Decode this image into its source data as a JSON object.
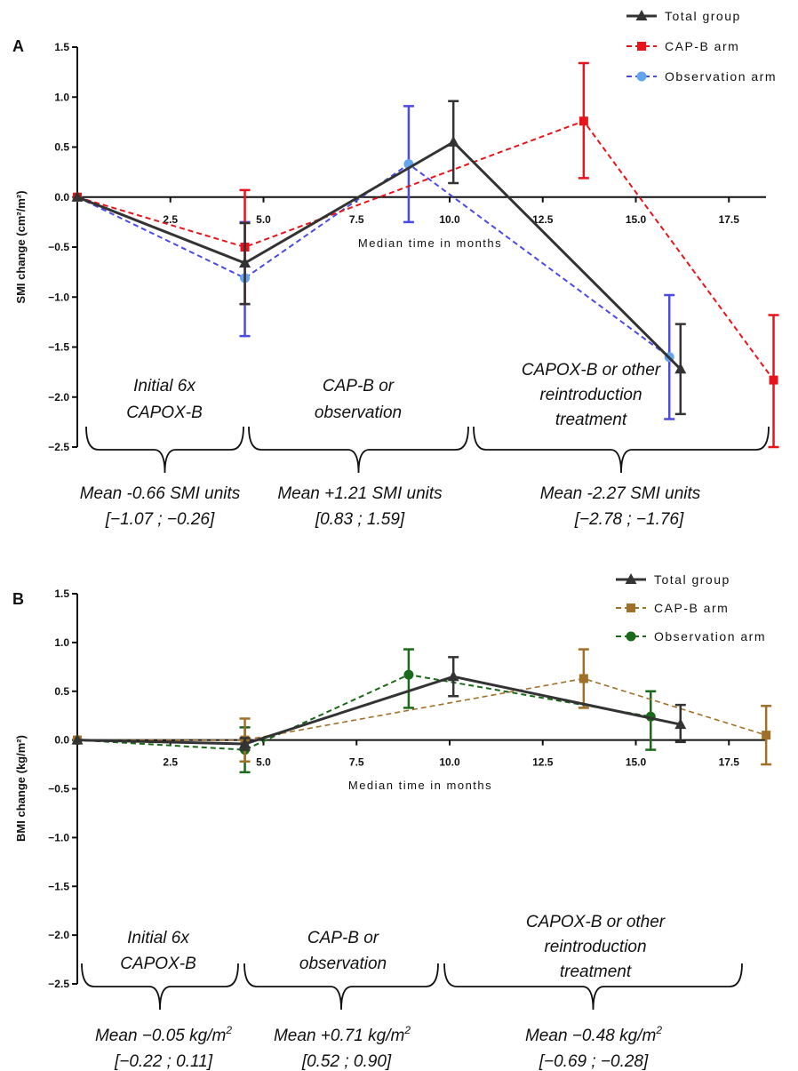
{
  "chart_data": [
    {
      "type": "line",
      "panel": "A",
      "ylabel": "SMI change (cm²/m²)",
      "xlabel": "Median time in months",
      "xlim": [
        0,
        18.5
      ],
      "ylim": [
        -2.5,
        1.5
      ],
      "xticks": [
        2.5,
        5.0,
        7.5,
        10.0,
        12.5,
        15.0,
        17.5
      ],
      "xtick_labels": [
        "2.5",
        "5.0",
        "7.5",
        "10.0",
        "12.5",
        "15.0",
        "17.5"
      ],
      "yticks": [
        1.5,
        1.0,
        0.5,
        0.0,
        -0.5,
        -1.0,
        -1.5,
        -2.0,
        -2.5
      ],
      "ytick_labels": [
        "1.5",
        "1.0",
        "0.5",
        "0.0",
        "−0.5",
        "−1.0",
        "−1.5",
        "−2.0",
        "−2.5"
      ],
      "legend_position": "top-right",
      "series": [
        {
          "name": "Total group",
          "color": "#333333",
          "style": "solid",
          "marker": "triangle",
          "width": 3,
          "points": [
            {
              "x": 0,
              "y": 0
            },
            {
              "x": 4.5,
              "y": -0.66,
              "lo": -1.07,
              "hi": -0.26
            },
            {
              "x": 10.1,
              "y": 0.55,
              "lo": 0.14,
              "hi": 0.96
            },
            {
              "x": 16.2,
              "y": -1.72,
              "lo": -2.17,
              "hi": -1.27
            }
          ]
        },
        {
          "name": "CAP-B arm",
          "color": "#e8141b",
          "style": "dashed",
          "marker": "square",
          "width": 2,
          "points": [
            {
              "x": 0,
              "y": 0
            },
            {
              "x": 4.5,
              "y": -0.5,
              "lo": -1.07,
              "hi": 0.07
            },
            {
              "x": 13.6,
              "y": 0.76,
              "lo": 0.19,
              "hi": 1.34
            },
            {
              "x": 18.7,
              "y": -1.83,
              "lo": -2.5,
              "hi": -1.18
            }
          ]
        },
        {
          "name": "Observation arm",
          "color": "#4a4ae6",
          "style": "dashed",
          "marker": "circle",
          "markerColor": "#62a6ee",
          "width": 2,
          "points": [
            {
              "x": 0,
              "y": 0
            },
            {
              "x": 4.5,
              "y": -0.81,
              "lo": -1.39,
              "hi": -0.25
            },
            {
              "x": 8.9,
              "y": 0.33,
              "lo": -0.25,
              "hi": 0.91
            },
            {
              "x": 15.9,
              "y": -1.6,
              "lo": -2.22,
              "hi": -0.98
            }
          ]
        }
      ],
      "phases": [
        {
          "label_lines": [
            "Initial 6x",
            "CAPOX-B"
          ],
          "mean": "Mean -0.66 SMI units",
          "ci": "[−1.07 ; −0.26]"
        },
        {
          "label_lines": [
            "CAP-B or",
            "observation"
          ],
          "mean": "Mean +1.21 SMI units",
          "ci": "[0.83 ; 1.59]"
        },
        {
          "label_lines": [
            "CAPOX-B or other",
            "reintroduction",
            "treatment"
          ],
          "mean": "Mean -2.27 SMI units",
          "ci": "[−2.78 ; −1.76]"
        }
      ]
    },
    {
      "type": "line",
      "panel": "B",
      "ylabel": "BMI change (kg/m²)",
      "xlabel": "Median time in months",
      "xlim": [
        0,
        18.5
      ],
      "ylim": [
        -2.5,
        1.5
      ],
      "xticks": [
        2.5,
        5.0,
        7.5,
        10.0,
        12.5,
        15.0,
        17.5
      ],
      "xtick_labels": [
        "2.5",
        "5.0",
        "7.5",
        "10.0",
        "12.5",
        "15.0",
        "17.5"
      ],
      "yticks": [
        1.5,
        1.0,
        0.5,
        0.0,
        -0.5,
        -1.0,
        -1.5,
        -2.0,
        -2.5
      ],
      "ytick_labels": [
        "1.5",
        "1.0",
        "0.5",
        "0.0",
        "−0.5",
        "−1.0",
        "−1.5",
        "−2.0",
        "−2.5"
      ],
      "legend_position": "top-right",
      "series": [
        {
          "name": "Total group",
          "color": "#333333",
          "style": "solid",
          "marker": "triangle",
          "width": 3,
          "points": [
            {
              "x": 0,
              "y": 0
            },
            {
              "x": 4.5,
              "y": -0.04,
              "lo": -0.1,
              "hi": 0.02
            },
            {
              "x": 10.1,
              "y": 0.65,
              "lo": 0.45,
              "hi": 0.85
            },
            {
              "x": 16.2,
              "y": 0.16,
              "lo": -0.02,
              "hi": 0.36
            }
          ]
        },
        {
          "name": "CAP-B arm",
          "color": "#a07028",
          "style": "dashed",
          "marker": "square",
          "width": 1.6,
          "points": [
            {
              "x": 0,
              "y": 0
            },
            {
              "x": 4.5,
              "y": 0.0,
              "lo": -0.22,
              "hi": 0.22
            },
            {
              "x": 13.6,
              "y": 0.63,
              "lo": 0.33,
              "hi": 0.93
            },
            {
              "x": 18.5,
              "y": 0.05,
              "lo": -0.25,
              "hi": 0.35
            }
          ]
        },
        {
          "name": "Observation arm",
          "color": "#1a6a1a",
          "style": "dashed",
          "marker": "circle",
          "width": 2,
          "points": [
            {
              "x": 0,
              "y": 0
            },
            {
              "x": 4.5,
              "y": -0.1,
              "lo": -0.33,
              "hi": 0.13
            },
            {
              "x": 8.9,
              "y": 0.67,
              "lo": 0.33,
              "hi": 0.93
            },
            {
              "x": 15.4,
              "y": 0.24,
              "lo": -0.1,
              "hi": 0.5
            }
          ]
        }
      ],
      "phases": [
        {
          "label_lines": [
            "Initial 6x",
            "CAPOX-B"
          ],
          "mean": "Mean −0.05 kg/m",
          "ci": "[−0.22 ; 0.11]"
        },
        {
          "label_lines": [
            "CAP-B or",
            "observation"
          ],
          "mean": "Mean +0.71 kg/m",
          "ci": "[0.52 ; 0.90]"
        },
        {
          "label_lines": [
            "CAPOX-B or other",
            "reintroduction",
            "treatment"
          ],
          "mean": "Mean −0.48 kg/m",
          "ci": "[−0.69 ; −0.28]"
        }
      ]
    }
  ]
}
